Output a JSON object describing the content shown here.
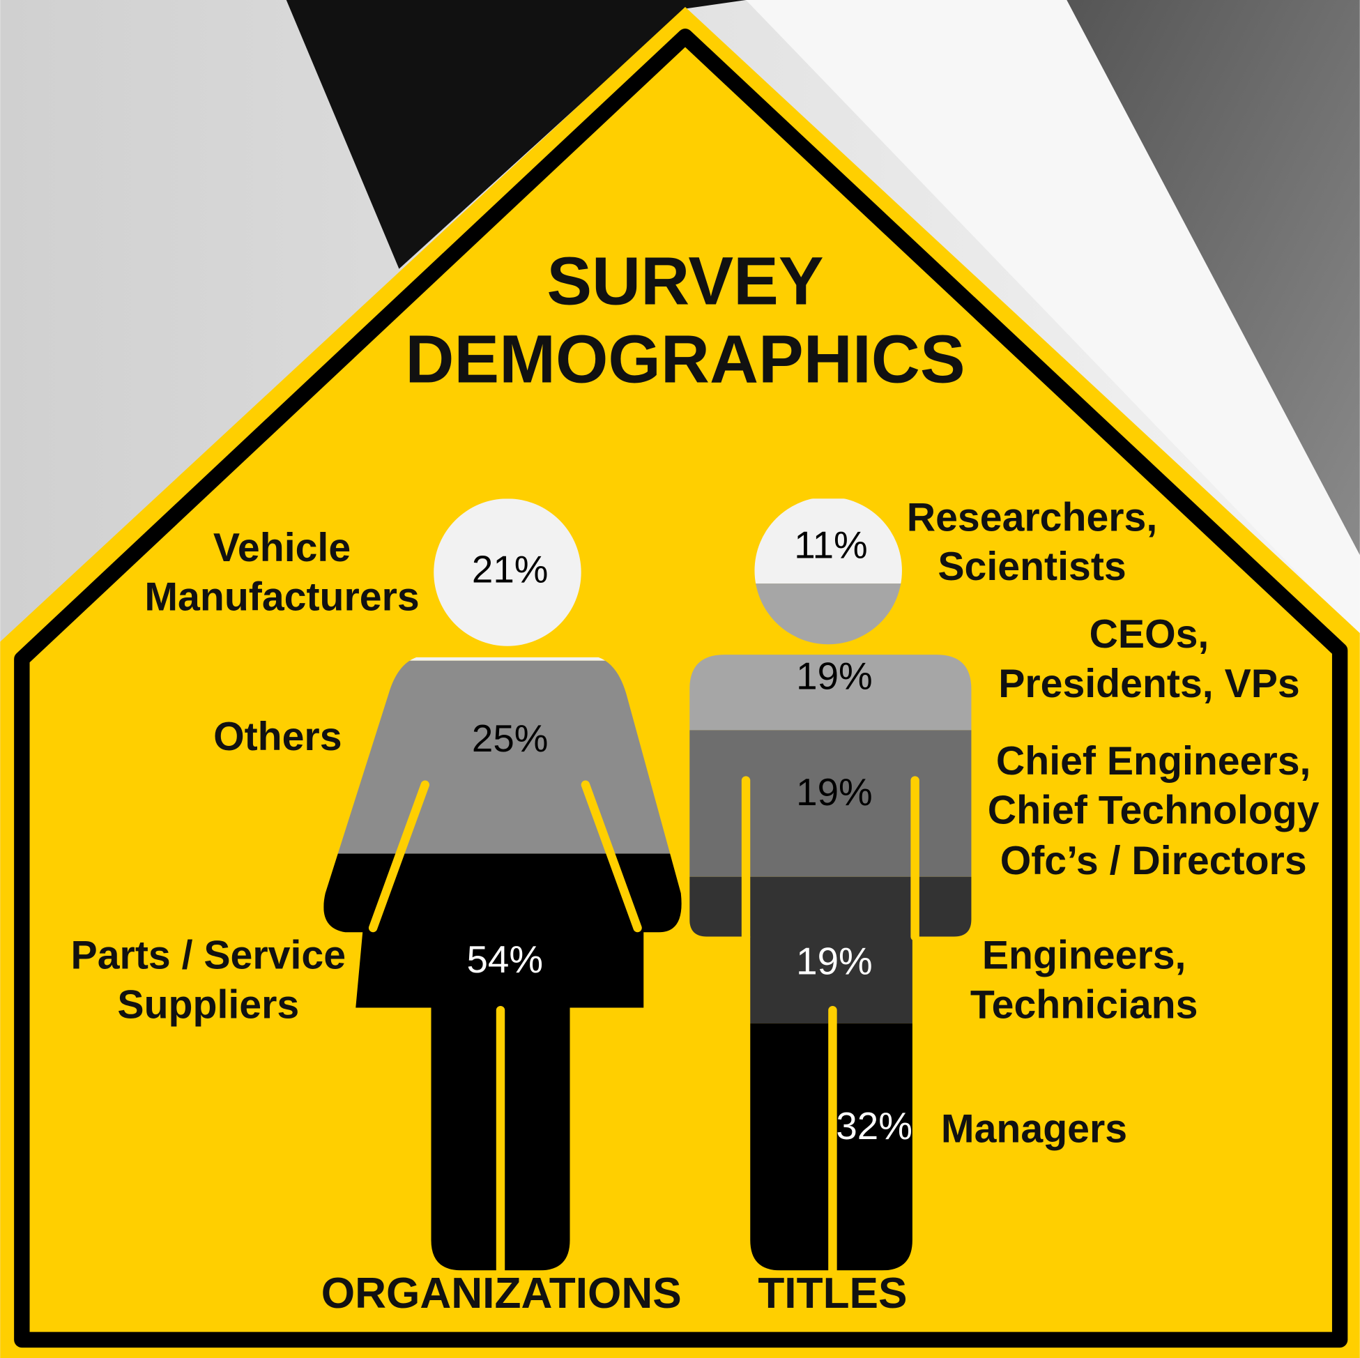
{
  "title": "SURVEY DEMOGRAPHICS",
  "chart_data": [
    {
      "type": "pictogram",
      "label": "ORGANIZATIONS",
      "categories": [
        "Vehicle Manufacturers",
        "Others",
        "Parts / Service Suppliers"
      ],
      "values": [
        21,
        25,
        54
      ],
      "value_labels": [
        "21%",
        "25%",
        "54%"
      ],
      "colors": [
        "#f2f2f2",
        "#8c8c8c",
        "#000000"
      ],
      "label_colors": [
        "#000000",
        "#000000",
        "#ffffff"
      ],
      "ylim": [
        0,
        100
      ]
    },
    {
      "type": "pictogram",
      "label": "TITLES",
      "categories": [
        "Researchers, Scientists",
        "CEOs, Presidents, VPs",
        "Chief Engineers, Chief Technology Ofc’s / Directors",
        "Engineers, Technicians",
        "Managers"
      ],
      "values": [
        11,
        19,
        19,
        19,
        32
      ],
      "value_labels": [
        "11%",
        "19%",
        "19%",
        "19%",
        "32%"
      ],
      "colors": [
        "#f2f2f2",
        "#a6a6a6",
        "#6e6e6e",
        "#333333",
        "#000000"
      ],
      "label_colors": [
        "#000000",
        "#000000",
        "#000000",
        "#ffffff",
        "#ffffff"
      ],
      "ylim": [
        0,
        100
      ]
    }
  ]
}
